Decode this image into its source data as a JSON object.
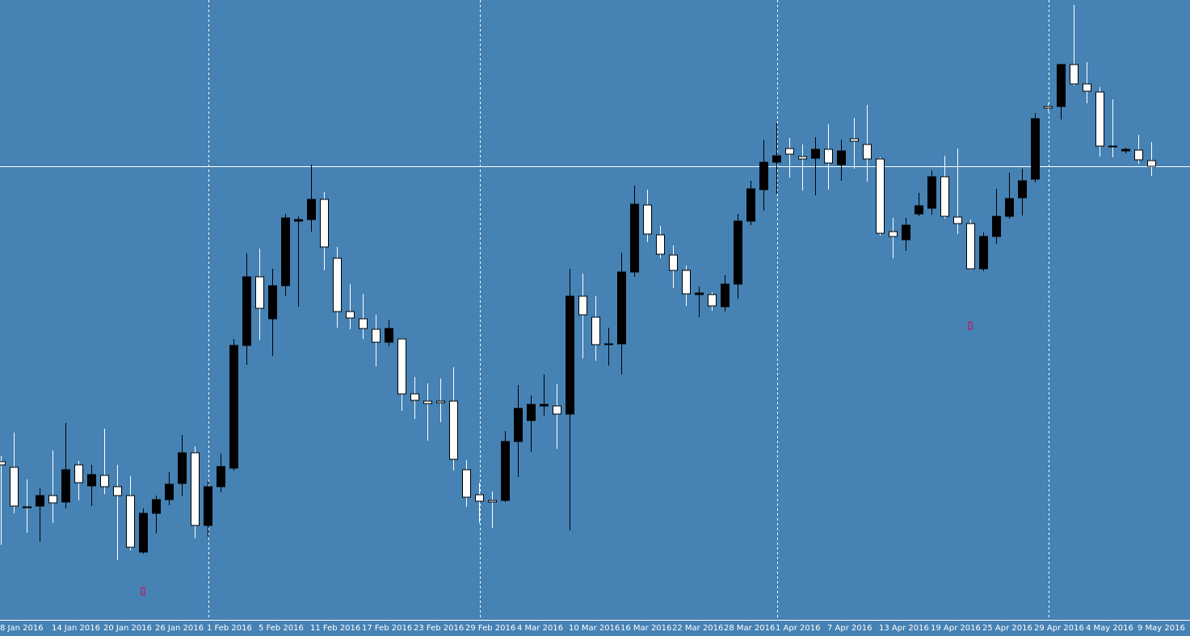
{
  "chart_data": {
    "type": "candlestick",
    "categories": [
      "8 Jan 2016",
      null,
      null,
      null,
      "14 Jan 2016",
      null,
      null,
      null,
      "20 Jan 2016",
      null,
      null,
      null,
      "26 Jan 2016",
      null,
      null,
      null,
      "1 Feb 2016",
      null,
      null,
      null,
      "5 Feb 2016",
      null,
      null,
      null,
      "11 Feb 2016",
      null,
      null,
      null,
      "17 Feb 2016",
      null,
      null,
      null,
      "23 Feb 2016",
      null,
      null,
      null,
      "29 Feb 2016",
      null,
      null,
      null,
      "4 Mar 2016",
      null,
      null,
      null,
      "10 Mar 2016",
      null,
      null,
      null,
      "16 Mar 2016",
      null,
      null,
      null,
      "22 Mar 2016",
      null,
      null,
      null,
      "28 Mar 2016",
      null,
      null,
      null,
      "1 Apr 2016",
      null,
      null,
      null,
      "7 Apr 2016",
      null,
      null,
      null,
      "13 Apr 2016",
      null,
      null,
      null,
      "19 Apr 2016",
      null,
      null,
      null,
      "25 Apr 2016",
      null,
      null,
      null,
      "29 Apr 2016",
      null,
      null,
      null,
      "4 May 2016",
      null,
      null,
      null,
      "9 May 2016",
      null
    ],
    "open": [
      196,
      189,
      140,
      141,
      154,
      146,
      192,
      166,
      179,
      165,
      154,
      84,
      132,
      149,
      169,
      207,
      117,
      165,
      188,
      340,
      425,
      373,
      414,
      494,
      496,
      521,
      448,
      382,
      373,
      360,
      344,
      348,
      280,
      271,
      271,
      271,
      186,
      155,
      148,
      148,
      221,
      247,
      265,
      265,
      255,
      401,
      375,
      341,
      342,
      431,
      514,
      477,
      452,
      433,
      403,
      403,
      388,
      416,
      494,
      533,
      567,
      584,
      574,
      572,
      583,
      564,
      596,
      589,
      571,
      481,
      471,
      503,
      510,
      549,
      499,
      491,
      435,
      475,
      500,
      523,
      546,
      636,
      636,
      688,
      664,
      654,
      587,
      581,
      582,
      569
    ],
    "high": [
      203,
      232,
      174,
      163,
      210,
      244,
      197,
      192,
      237,
      192,
      178,
      138,
      154,
      183,
      229,
      215,
      172,
      206,
      348,
      454,
      460,
      435,
      503,
      500,
      564,
      530,
      462,
      416,
      404,
      378,
      372,
      349,
      301,
      293,
      299,
      313,
      198,
      170,
      159,
      234,
      291,
      278,
      304,
      292,
      435,
      429,
      401,
      362,
      455,
      538,
      533,
      488,
      464,
      439,
      413,
      406,
      427,
      503,
      544,
      595,
      615,
      597,
      589,
      598,
      614,
      595,
      622,
      638,
      573,
      498,
      498,
      529,
      557,
      575,
      584,
      496,
      480,
      534,
      554,
      559,
      628,
      640,
      689,
      762,
      691,
      660,
      645,
      585,
      601,
      592
    ],
    "low": [
      93,
      132,
      108,
      97,
      120,
      138,
      148,
      141,
      156,
      74,
      86,
      82,
      107,
      142,
      153,
      101,
      103,
      158,
      185,
      316,
      347,
      327,
      401,
      388,
      481,
      433,
      362,
      360,
      348,
      314,
      339,
      259,
      249,
      222,
      245,
      185,
      140,
      120,
      114,
      146,
      177,
      208,
      253,
      212,
      111,
      324,
      321,
      315,
      304,
      425,
      468,
      448,
      411,
      389,
      375,
      383,
      382,
      398,
      489,
      507,
      528,
      548,
      532,
      526,
      533,
      544,
      559,
      543,
      476,
      448,
      457,
      500,
      502,
      497,
      478,
      434,
      432,
      466,
      497,
      501,
      542,
      630,
      620,
      662,
      640,
      574,
      573,
      578,
      565,
      550
    ],
    "close": [
      192,
      141,
      140,
      154,
      145,
      186,
      170,
      180,
      165,
      154,
      90,
      132,
      149,
      168,
      207,
      117,
      165,
      190,
      340,
      425,
      386,
      414,
      498,
      496,
      521,
      462,
      382,
      374,
      361,
      344,
      361,
      280,
      272,
      268,
      269,
      199,
      152,
      147,
      146,
      221,
      262,
      267,
      267,
      255,
      401,
      378,
      341,
      342,
      431,
      515,
      478,
      453,
      433,
      404,
      405,
      389,
      416,
      494,
      534,
      567,
      575,
      577,
      571,
      583,
      566,
      581,
      593,
      571,
      479,
      475,
      489,
      513,
      549,
      500,
      491,
      435,
      475,
      500,
      522,
      544,
      621,
      634,
      688,
      664,
      655,
      587,
      586,
      583,
      570,
      562
    ],
    "up_color": "#000000",
    "down_color": "#ffffff",
    "price_line": 562,
    "ylim": [
      0,
      768
    ]
  }
}
